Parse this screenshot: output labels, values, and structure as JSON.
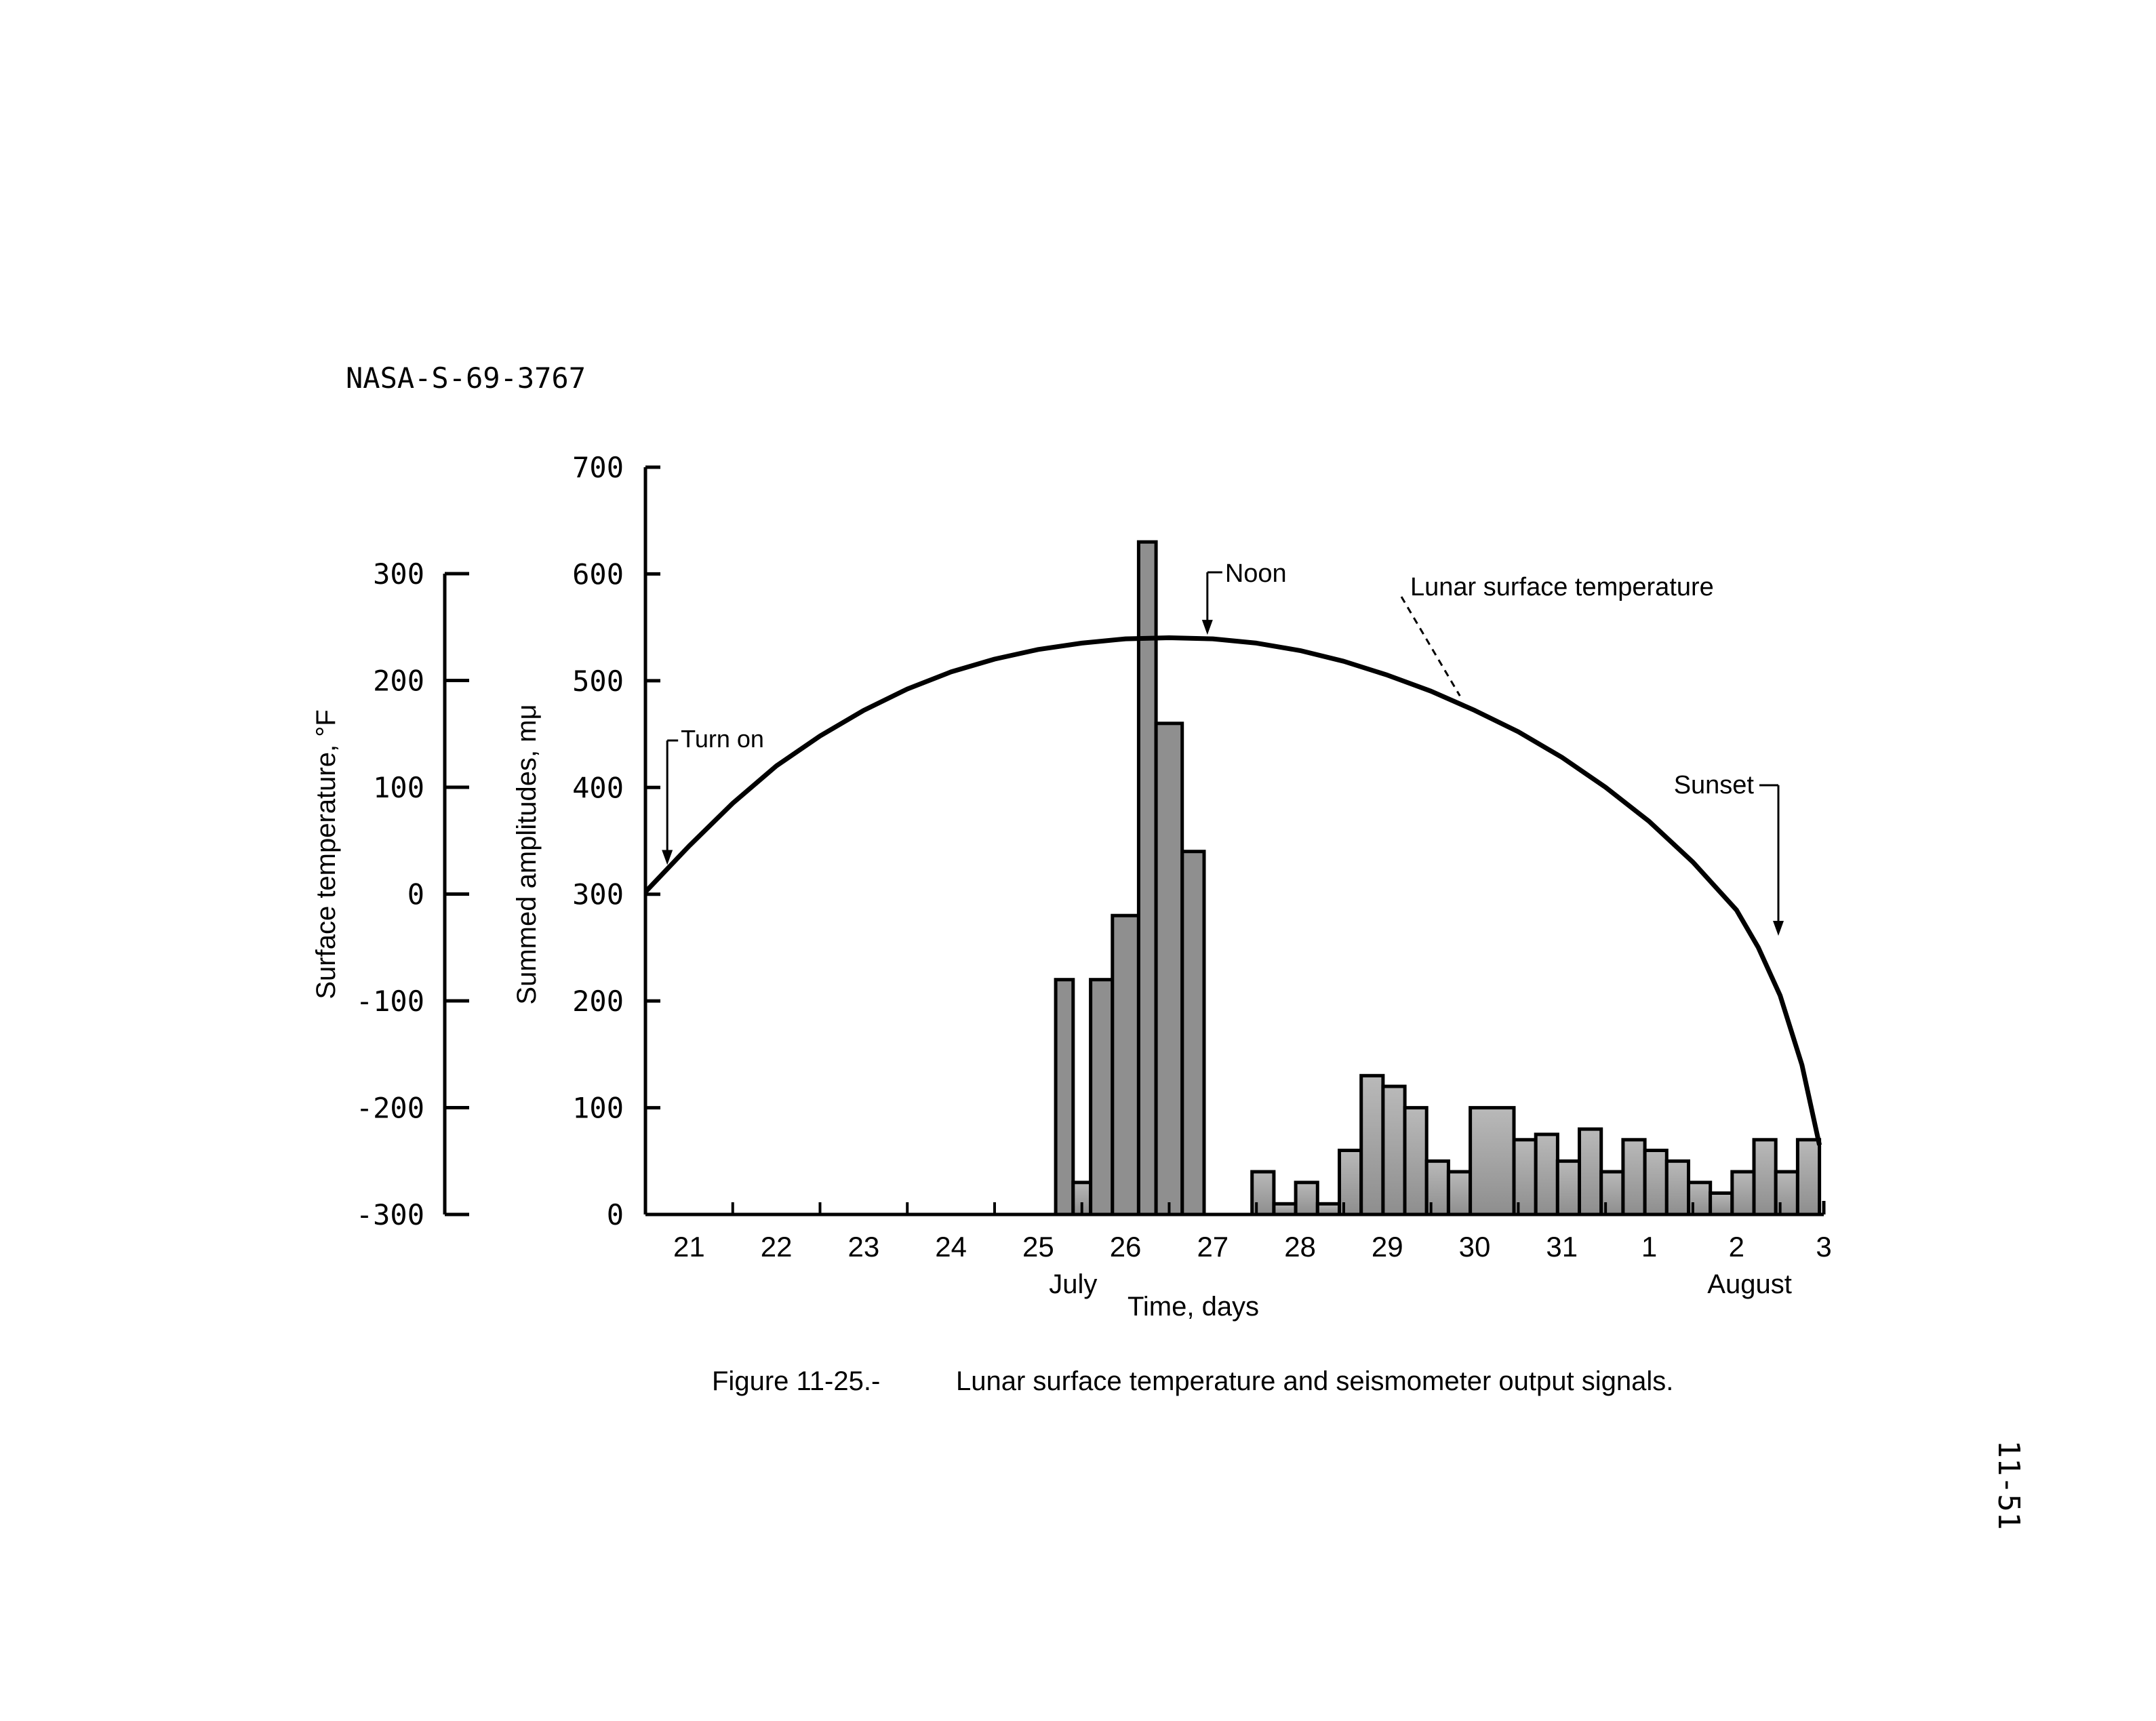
{
  "document_id": "NASA-S-69-3767",
  "page_number": "11-51",
  "caption": {
    "figure_number": "Figure 11-25.-",
    "text": "Lunar surface temperature and seismometer output signals."
  },
  "chart_data": {
    "type": "bar",
    "secondary_type": "line",
    "xlabel": "Time, days",
    "ylabel": "Summed amplitudes, mμ",
    "ylabel_secondary": "Surface temperature, °F",
    "ylim": [
      0,
      700
    ],
    "ylim_secondary": [
      -300,
      300
    ],
    "yticks": [
      0,
      100,
      200,
      300,
      400,
      500,
      600,
      700
    ],
    "yticks_secondary": [
      -300,
      -200,
      -100,
      0,
      100,
      200,
      300
    ],
    "xlim": [
      20.5,
      34.0
    ],
    "x_tick_labels": [
      "21",
      "22",
      "23",
      "24",
      "25",
      "26",
      "27",
      "28",
      "29",
      "30",
      "31",
      "1",
      "2",
      "3"
    ],
    "month_labels": [
      {
        "text": "July",
        "x": 25.4
      },
      {
        "text": "August",
        "x": 33.15
      }
    ],
    "bars": [
      {
        "x_start": 25.2,
        "x_end": 25.4,
        "value": 220
      },
      {
        "x_start": 25.4,
        "x_end": 25.6,
        "value": 30
      },
      {
        "x_start": 25.6,
        "x_end": 25.85,
        "value": 220
      },
      {
        "x_start": 25.85,
        "x_end": 26.15,
        "value": 280
      },
      {
        "x_start": 26.15,
        "x_end": 26.35,
        "value": 630
      },
      {
        "x_start": 26.35,
        "x_end": 26.65,
        "value": 460
      },
      {
        "x_start": 26.65,
        "x_end": 26.9,
        "value": 340
      },
      {
        "x_start": 27.45,
        "x_end": 27.7,
        "value": 40
      },
      {
        "x_start": 27.7,
        "x_end": 27.95,
        "value": 10
      },
      {
        "x_start": 27.95,
        "x_end": 28.2,
        "value": 30
      },
      {
        "x_start": 28.2,
        "x_end": 28.45,
        "value": 10
      },
      {
        "x_start": 28.45,
        "x_end": 28.7,
        "value": 60
      },
      {
        "x_start": 28.7,
        "x_end": 28.95,
        "value": 130
      },
      {
        "x_start": 28.95,
        "x_end": 29.2,
        "value": 120
      },
      {
        "x_start": 29.2,
        "x_end": 29.45,
        "value": 100
      },
      {
        "x_start": 29.45,
        "x_end": 29.7,
        "value": 50
      },
      {
        "x_start": 29.7,
        "x_end": 29.95,
        "value": 40
      },
      {
        "x_start": 29.95,
        "x_end": 30.45,
        "value": 100
      },
      {
        "x_start": 30.45,
        "x_end": 30.7,
        "value": 70
      },
      {
        "x_start": 30.7,
        "x_end": 30.95,
        "value": 75
      },
      {
        "x_start": 30.95,
        "x_end": 31.2,
        "value": 50
      },
      {
        "x_start": 31.2,
        "x_end": 31.45,
        "value": 80
      },
      {
        "x_start": 31.45,
        "x_end": 31.7,
        "value": 40
      },
      {
        "x_start": 31.7,
        "x_end": 31.95,
        "value": 70
      },
      {
        "x_start": 31.95,
        "x_end": 32.2,
        "value": 60
      },
      {
        "x_start": 32.2,
        "x_end": 32.45,
        "value": 50
      },
      {
        "x_start": 32.45,
        "x_end": 32.7,
        "value": 30
      },
      {
        "x_start": 32.7,
        "x_end": 32.95,
        "value": 20
      },
      {
        "x_start": 32.95,
        "x_end": 33.2,
        "value": 40
      },
      {
        "x_start": 33.2,
        "x_end": 33.45,
        "value": 70
      },
      {
        "x_start": 33.45,
        "x_end": 33.7,
        "value": 40
      },
      {
        "x_start": 33.7,
        "x_end": 33.95,
        "value": 70
      }
    ],
    "series": [
      {
        "name": "Lunar surface temperature",
        "x": [
          20.5,
          21.0,
          21.5,
          22.0,
          22.5,
          23.0,
          23.5,
          24.0,
          24.5,
          25.0,
          25.5,
          26.0,
          26.5,
          27.0,
          27.5,
          28.0,
          28.5,
          29.0,
          29.5,
          30.0,
          30.5,
          31.0,
          31.5,
          32.0,
          32.5,
          33.0,
          33.25,
          33.5,
          33.75,
          33.95
        ],
        "values": [
          2,
          45,
          85,
          120,
          148,
          172,
          192,
          208,
          220,
          229,
          235,
          239,
          240,
          239,
          235,
          228,
          218,
          205,
          190,
          172,
          152,
          128,
          100,
          68,
          30,
          -15,
          -50,
          -95,
          -160,
          -235
        ]
      }
    ],
    "annotations": [
      {
        "text": "Turn on",
        "x": 20.75
      },
      {
        "text": "Noon",
        "x": 27.0
      },
      {
        "text": "Lunar surface temperature",
        "x": 29.8
      },
      {
        "text": "Sunset",
        "x": 34.0
      }
    ]
  }
}
